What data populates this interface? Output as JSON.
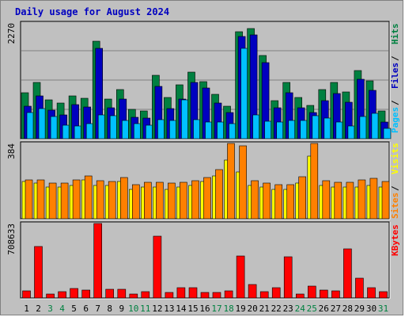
{
  "chart_data": {
    "type": "bar",
    "title": "Daily usage for August 2024",
    "categories": [
      "1",
      "2",
      "3",
      "4",
      "5",
      "6",
      "7",
      "8",
      "9",
      "10",
      "11",
      "12",
      "13",
      "14",
      "15",
      "16",
      "17",
      "18",
      "19",
      "20",
      "21",
      "22",
      "23",
      "24",
      "25",
      "26",
      "27",
      "28",
      "29",
      "30",
      "31"
    ],
    "weekend_days": [
      3,
      4,
      10,
      11,
      17,
      18,
      24,
      25,
      31
    ],
    "colors": {
      "hits": "#008040",
      "files": "#0000c0",
      "pages": "#00c0ff",
      "visits": "#ffff00",
      "sites": "#ff8000",
      "kbytes": "#ff0000",
      "weekday_label": "#000000",
      "weekend_label": "#008040"
    },
    "panels": [
      {
        "id": "hits-files-pages",
        "ymax_label": "2270",
        "ylim": [
          0,
          2270
        ],
        "legend": [
          {
            "name": "Pages",
            "color": "#00c0ff"
          },
          {
            "name": "Files",
            "color": "#0000c0"
          },
          {
            "name": "Hits",
            "color": "#008040"
          }
        ],
        "series": [
          {
            "name": "Hits",
            "values": [
              900,
              1100,
              760,
              700,
              840,
              800,
              1920,
              780,
              970,
              580,
              540,
              1240,
              810,
              1060,
              1300,
              1120,
              870,
              640,
              2100,
              2160,
              1640,
              740,
              1100,
              810,
              660,
              970,
              1100,
              910,
              1330,
              1140,
              550
            ]
          },
          {
            "name": "Files",
            "values": [
              640,
              840,
              560,
              460,
              670,
              620,
              1770,
              610,
              780,
              420,
              400,
              1030,
              590,
              770,
              1110,
              1000,
              700,
              520,
              2000,
              2040,
              1500,
              600,
              900,
              610,
              510,
              750,
              890,
              710,
              1160,
              950,
              330
            ]
          },
          {
            "name": "Pages",
            "values": [
              510,
              590,
              430,
              260,
              250,
              300,
              460,
              450,
              360,
              300,
              270,
              370,
              350,
              760,
              380,
              330,
              320,
              290,
              1770,
              470,
              340,
              320,
              350,
              350,
              450,
              410,
              330,
              250,
              430,
              500,
              200
            ]
          }
        ]
      },
      {
        "id": "visits-sites",
        "ymax_label": "384",
        "ylim": [
          0,
          384
        ],
        "legend": [
          {
            "name": "Sites",
            "color": "#ff8000"
          },
          {
            "name": "Visits",
            "color": "#ffff00"
          }
        ],
        "series": [
          {
            "name": "Visits",
            "values": [
              190,
              180,
              160,
              160,
              170,
              200,
              170,
              170,
              190,
              150,
              160,
              160,
              150,
              160,
              170,
              190,
              220,
              300,
              240,
              170,
              160,
              150,
              150,
              180,
              320,
              170,
              160,
              160,
              160,
              170,
              160
            ]
          },
          {
            "name": "Sites",
            "values": [
              200,
              200,
              180,
              180,
              200,
              220,
              195,
              190,
              210,
              175,
              185,
              185,
              180,
              185,
              195,
              210,
              250,
              384,
              370,
              195,
              180,
              175,
              175,
              215,
              384,
              195,
              185,
              185,
              200,
              205,
              190
            ]
          }
        ]
      },
      {
        "id": "kbytes",
        "ymax_label": "708633",
        "ylim": [
          0,
          708633
        ],
        "legend": [
          {
            "name": "KBytes",
            "color": "#ff0000"
          }
        ],
        "series": [
          {
            "name": "KBytes",
            "values": [
              70000,
              490000,
              40000,
              60000,
              90000,
              75000,
              708633,
              80000,
              80000,
              40000,
              60000,
              590000,
              50000,
              100000,
              100000,
              55000,
              50000,
              70000,
              400000,
              130000,
              60000,
              100000,
              390000,
              40000,
              110000,
              75000,
              70000,
              470000,
              190000,
              100000,
              60000
            ]
          }
        ]
      }
    ]
  }
}
